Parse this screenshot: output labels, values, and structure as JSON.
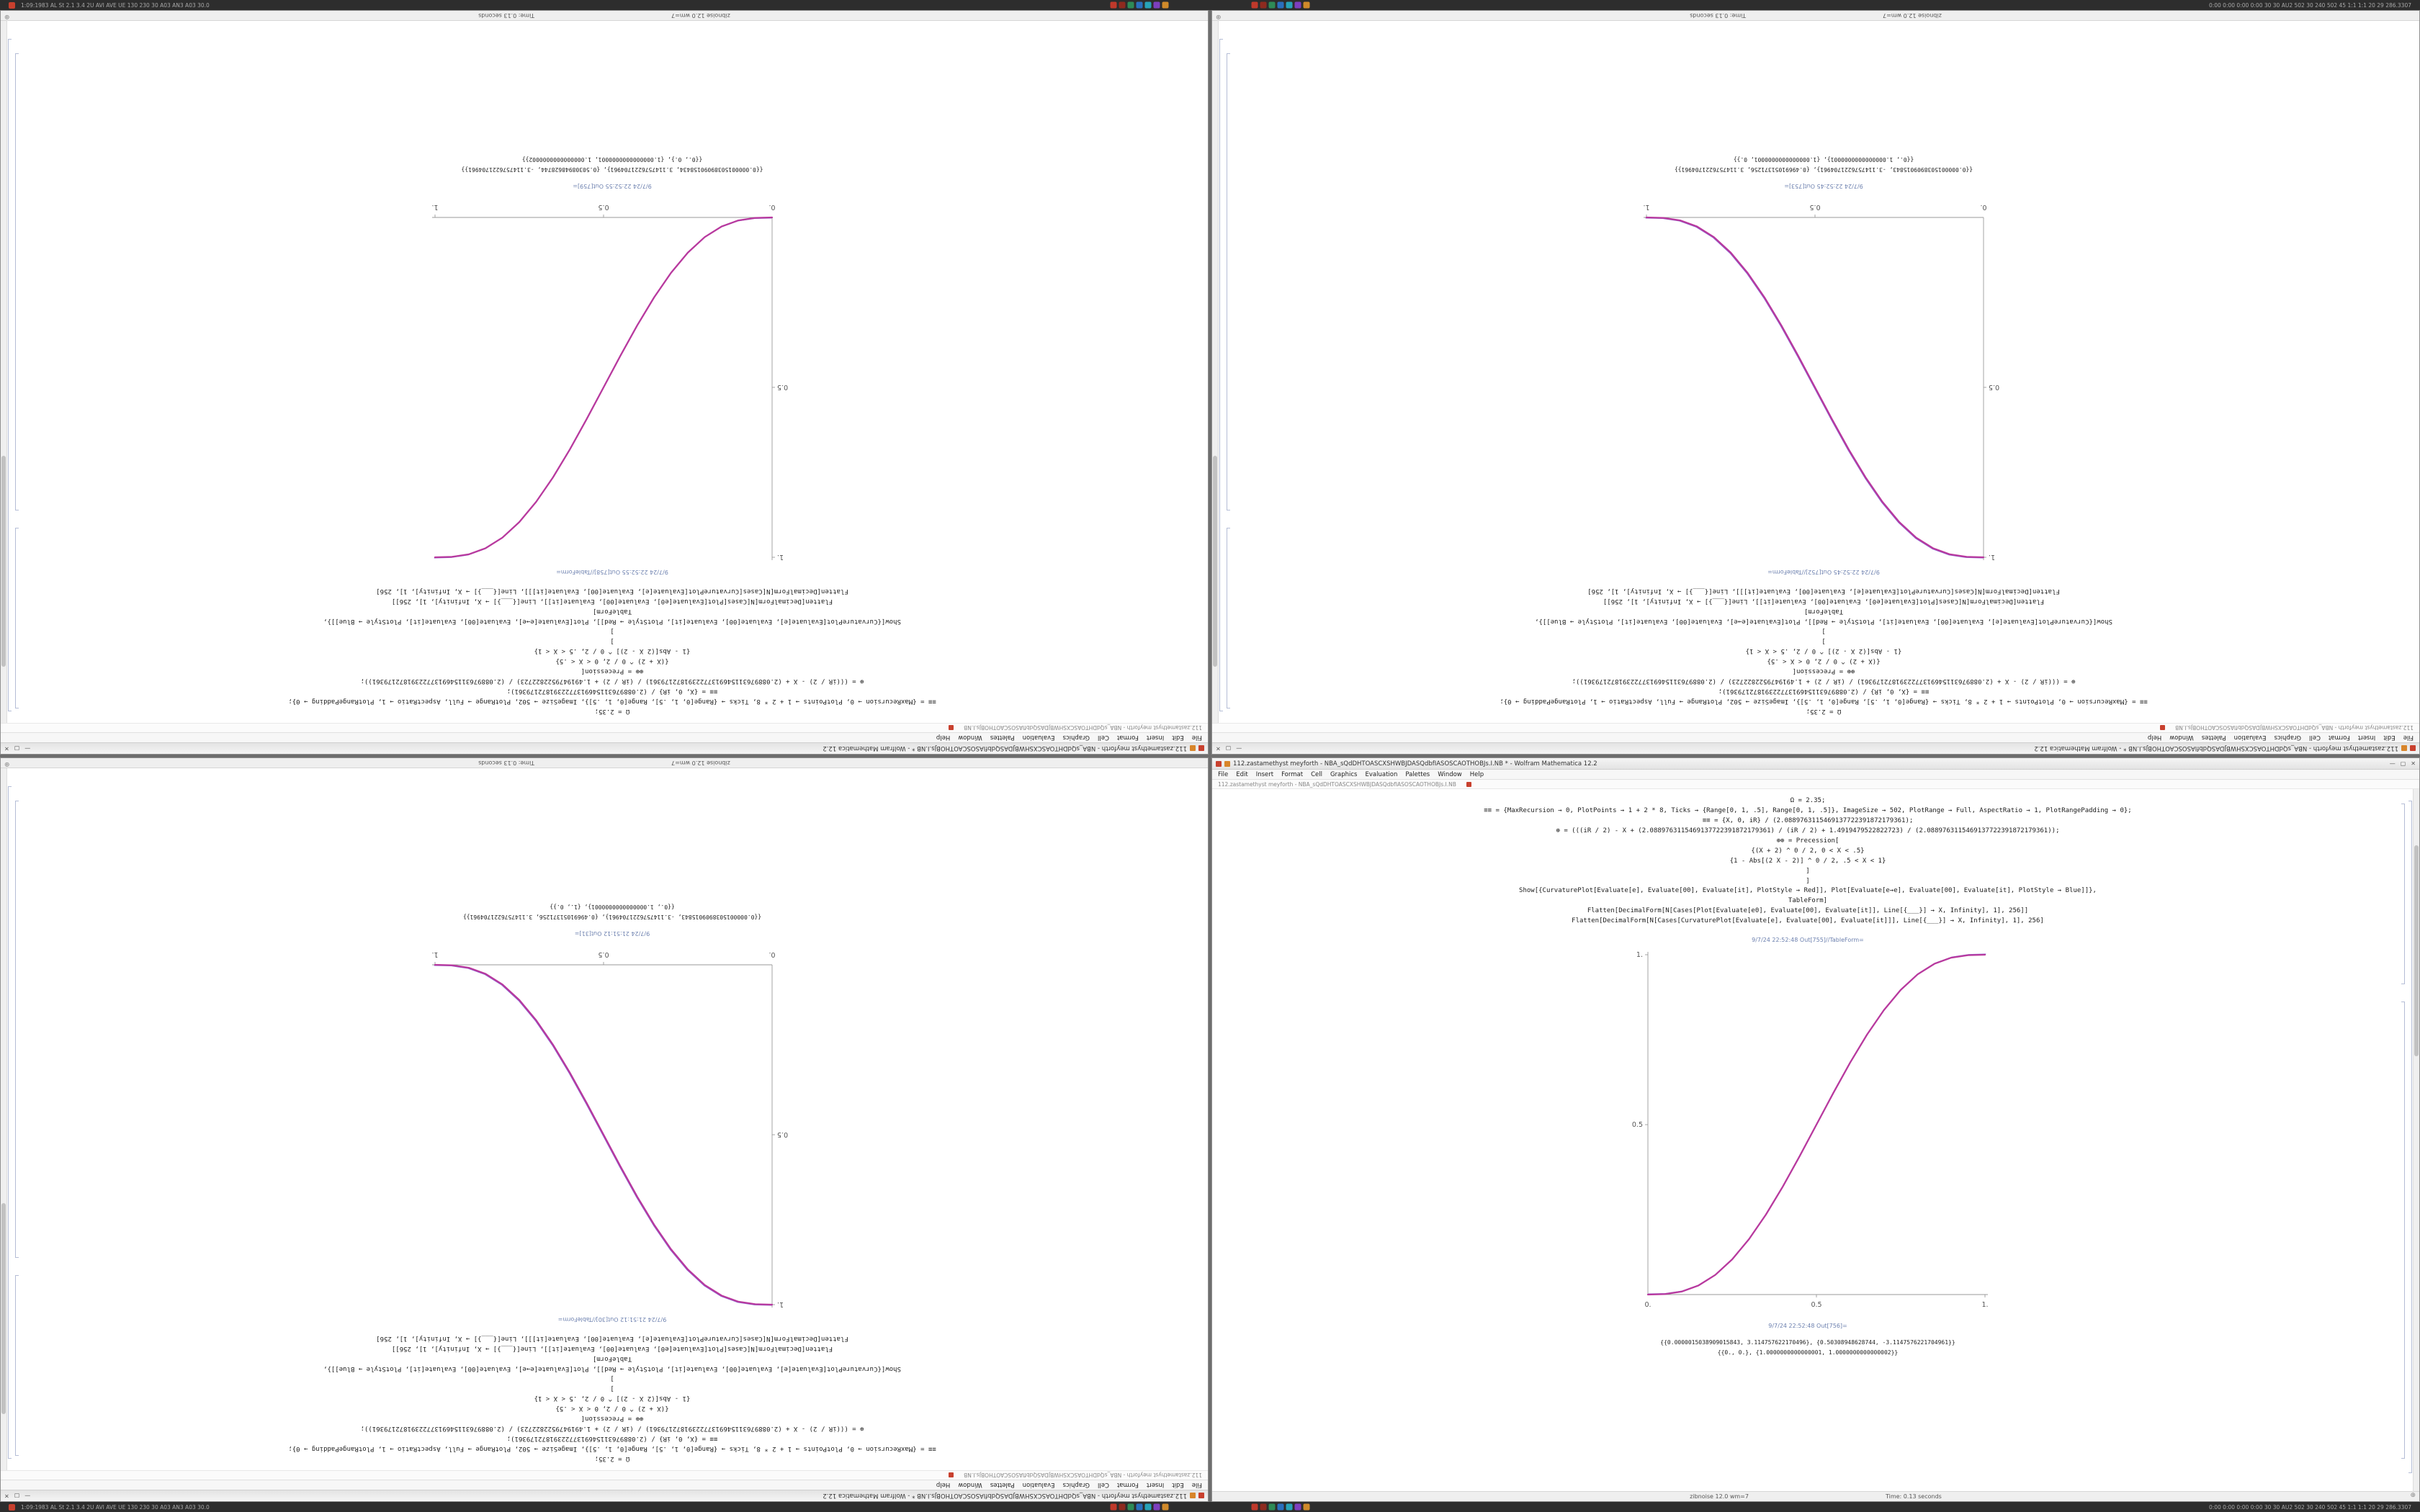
{
  "shared": {
    "taskbar": {
      "badge_color": "#c8402e",
      "left_text": "1:09:1983 AL St 2.1 3.4 2U AVI AVE UE 130 230 30 A03 AN3 A03 30.0",
      "right_text": "0:00 0:00 0:00 0:00 30 30 AU2 502 30 240 502 45 1:1 1:1 20 29 286.3307",
      "icon_colors": [
        "#c0392b",
        "#8e2a1f",
        "#2e8b57",
        "#2a6fbe",
        "#27a3b8",
        "#7d3fbf",
        "#d08a2a"
      ]
    },
    "menu_items": [
      "File",
      "Edit",
      "Insert",
      "Format",
      "Cell",
      "Graphics",
      "Evaluation",
      "Palettes",
      "Window",
      "Help"
    ],
    "window_controls": {
      "minimize": "—",
      "maximize": "▢",
      "close": "✕"
    },
    "icons": {
      "assistant": "⊕"
    },
    "code_lines": [
      "Ω = 2.35;",
      "≡≡ = {MaxRecursion → 0, PlotPoints → 1 + 2 * 8, Ticks → {Range[0, 1, .5], Range[0, 1, .5]}, ImageSize → 502, PlotRange → Full, AspectRatio → 1, PlotRangePadding → 0};",
      "≡≡ = {X, 0, iR} / (2.0889763115469137722391872179361);",
      "⊕ = (((iR / 2) - X + (2.0889763115469137722391872179361) / (iR / 2) + 1.4919479522822723) / (2.0889763115469137722391872179361));",
      "⊕⊕ = Precession[",
      "{(X + 2) ^ 0 / 2, 0 < X < .5}",
      "{1 - Abs[(2 X - 2)] ^ 0 / 2, .5 < X < 1}",
      "]",
      "]",
      "Show[{CurvaturePlot[Evaluate[e], Evaluate[00], Evaluate[it], PlotStyle → Red]],  Plot[Evaluate[e→e], Evaluate[00], Evaluate[it], PlotStyle → Blue]]},",
      "TableForm]",
      "Flatten[DecimalForm[N[Cases[Plot[Evaluate[e0], Evaluate[00], Evaluate[it]], Line[{___}] → X, Infinity], 1], 256]]",
      "Flatten[DecimalForm[N[Cases[CurvaturePlot[Evaluate[e], Evaluate[00], Evaluate[it]]], Line[{___}] → X, Infinity], 1], 256]"
    ],
    "curve_points": [
      [
        0,
        0
      ],
      [
        0.05,
        0.0012
      ],
      [
        0.1,
        0.0086
      ],
      [
        0.15,
        0.0266
      ],
      [
        0.2,
        0.0579
      ],
      [
        0.25,
        0.1035
      ],
      [
        0.3,
        0.1631
      ],
      [
        0.35,
        0.2352
      ],
      [
        0.4,
        0.3174
      ],
      [
        0.45,
        0.4069
      ],
      [
        0.5,
        0.5
      ],
      [
        0.55,
        0.5931
      ],
      [
        0.6,
        0.6826
      ],
      [
        0.65,
        0.7648
      ],
      [
        0.7,
        0.8369
      ],
      [
        0.75,
        0.8965
      ],
      [
        0.8,
        0.9421
      ],
      [
        0.85,
        0.9734
      ],
      [
        0.9,
        0.9914
      ],
      [
        0.95,
        0.9988
      ],
      [
        1,
        1
      ]
    ]
  },
  "quadrants": [
    {
      "position": "top-left",
      "rotated": true,
      "title": "112.zastamethyst meyforth - NBA_sQdDHTOASCXSHWBJDASQdbfIASOSCAOTHOBJs.I.NB * - Wolfram Mathematica 12.2",
      "docked_text": "112.zastamethyst meyforth - NBA_sQdDHTOASCXSHWBJDASQdbfIASOSCAOTHOBJs.I.NB",
      "out_label_tableform": "9/7/24 22:52:55 Out[758]//TableForm=",
      "out_label": "9/7/24 22:52:55 Out[759]=",
      "outputs": [
        "{{0.00000150389090158434, 3.1147576221704961}, {0.50308948628744, -3.1147576221704961}}",
        "{{0., 0.}, {1.0000000000000001, 1.0000000000000002}}"
      ],
      "plot": {
        "direction": "ascending",
        "x_range": [
          0,
          1
        ],
        "y_range": [
          0,
          1
        ],
        "x_ticks": [
          "0.",
          "0.5",
          "1."
        ],
        "x_tick_values": [
          0,
          0.5,
          1
        ],
        "y_ticks": [
          "0.5",
          "1."
        ],
        "y_tick_values": [
          0.5,
          1
        ],
        "curve_colors": [
          "#b8399e",
          "#7348cf"
        ]
      },
      "status_left": "zibnoise 12.0 wm=7",
      "status_time": "Time: 0.13 seconds"
    },
    {
      "position": "top-right",
      "rotated": true,
      "title": "112.zastamethyst meyforth - NBA_sQdDHTOASCXSHWBJDASQdbfIASOSCAOTHOBJs.I.NB * - Wolfram Mathematica 12.2",
      "docked_text": "112.zastamethyst meyforth - NBA_sQdDHTOASCXSHWBJDASQdbfIASOSCAOTHOBJs.I.NB",
      "out_label_tableform": "9/7/24 22:52:45 Out[752]//TableForm=",
      "out_label": "9/7/24 22:52:45 Out[753]=",
      "outputs": [
        "{{0.0000015038909015843, -3.1147576221704961}, {0.49691051371256, 3.1147576221704961}}",
        "{{0., 1.0000000000000001}, {1.0000000000000001, 0.}}"
      ],
      "plot": {
        "direction": "descending",
        "x_range": [
          0,
          1
        ],
        "y_range": [
          0,
          1
        ],
        "x_ticks": [
          "0.",
          "0.5",
          "1."
        ],
        "x_tick_values": [
          0,
          0.5,
          1
        ],
        "y_ticks": [
          "0.5",
          "1."
        ],
        "y_tick_values": [
          0.5,
          1
        ],
        "curve_colors": [
          "#b8399e",
          "#7348cf"
        ]
      },
      "status_left": "zibnoise 12.0 wm=7",
      "status_time": "Time: 0.13 seconds"
    },
    {
      "position": "bottom-left",
      "rotated": true,
      "title": "112.zastamethyst meyforth - NBA_sQdDHTOASCXSHWBJDASQdbfIASOSCAOTHOBJs.I.NB * - Wolfram Mathematica 12.2",
      "docked_text": "112.zastamethyst meyforth - NBA_sQdDHTOASCXSHWBJDASQdbfIASOSCAOTHOBJs.I.NB",
      "out_label_tableform": "9/7/24 21:51:12 Out[30]//TableForm=",
      "out_label": "9/7/24 21:51:12 Out[31]=",
      "outputs": [
        "{{0.0000015038909015843, -3.1147576221704961}, {0.49691051371256, 3.1147576221704961}}",
        "{{0., 1.0000000000000001}, {1., 0.}}"
      ],
      "plot": {
        "direction": "descending",
        "x_range": [
          0,
          1
        ],
        "y_range": [
          0,
          1
        ],
        "x_ticks": [
          "0.",
          "0.5",
          "1."
        ],
        "x_tick_values": [
          0,
          0.5,
          1
        ],
        "y_ticks": [
          "0.5",
          "1."
        ],
        "y_tick_values": [
          0.5,
          1
        ],
        "curve_colors": [
          "#b8399e",
          "#7348cf"
        ]
      },
      "status_left": "zibnoise 12.0 wm=7",
      "status_time": "Time: 0.13 seconds"
    },
    {
      "position": "bottom-right",
      "rotated": false,
      "title": "112.zastamethyst meyforth - NBA_sQdDHTOASCXSHWBJDASQdbfIASOSCAOTHOBJs.I.NB * - Wolfram Mathematica 12.2",
      "docked_text": "112.zastamethyst meyforth - NBA_sQdDHTOASCXSHWBJDASQdbfIASOSCAOTHOBJs.I.NB",
      "out_label_tableform": "9/7/24 22:52:48 Out[755]//TableForm=",
      "out_label": "9/7/24 22:52:48 Out[756]=",
      "outputs": [
        "{{0.0000015038909015843, 3.114757622170496}, {0.50308948628744, -3.1147576221704961}}",
        "{{0., 0.}, {1.0000000000000001, 1.0000000000000002}}"
      ],
      "plot": {
        "direction": "ascending",
        "x_range": [
          0,
          1
        ],
        "y_range": [
          0,
          1
        ],
        "x_ticks": [
          "0.",
          "0.5",
          "1."
        ],
        "x_tick_values": [
          0,
          0.5,
          1
        ],
        "y_ticks": [
          "0.5",
          "1."
        ],
        "y_tick_values": [
          0.5,
          1
        ],
        "curve_colors": [
          "#b8399e",
          "#7348cf"
        ]
      },
      "status_left": "zibnoise 12.0 wm=7",
      "status_time": "Time: 0.13 seconds"
    }
  ]
}
